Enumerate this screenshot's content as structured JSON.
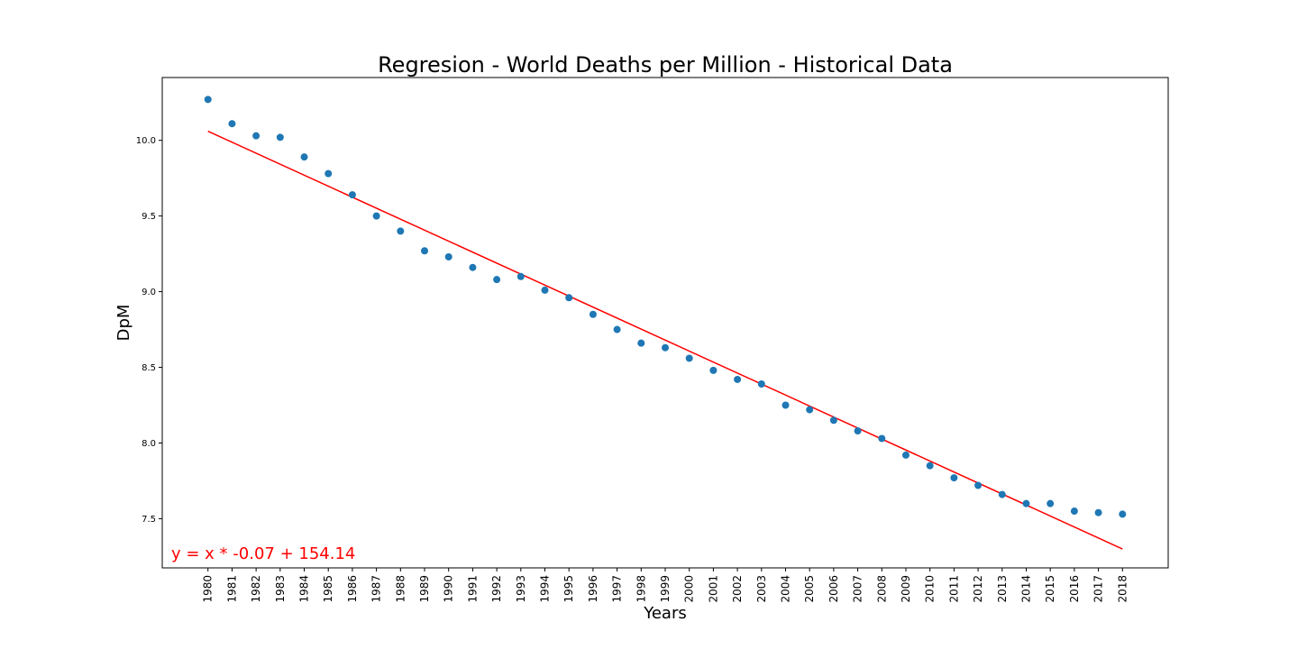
{
  "chart_data": {
    "type": "scatter",
    "title": "Regresion - World Deaths per Million - Historical Data",
    "xlabel": "Years",
    "ylabel": "DpM",
    "x": [
      1980,
      1981,
      1982,
      1983,
      1984,
      1985,
      1986,
      1987,
      1988,
      1989,
      1990,
      1991,
      1992,
      1993,
      1994,
      1995,
      1996,
      1997,
      1998,
      1999,
      2000,
      2001,
      2002,
      2003,
      2004,
      2005,
      2006,
      2007,
      2008,
      2009,
      2010,
      2011,
      2012,
      2013,
      2014,
      2015,
      2016,
      2017,
      2018
    ],
    "xticks": [
      "1980",
      "1981",
      "1982",
      "1983",
      "1984",
      "1985",
      "1986",
      "1987",
      "1988",
      "1989",
      "1990",
      "1991",
      "1992",
      "1993",
      "1994",
      "1995",
      "1996",
      "1997",
      "1998",
      "1999",
      "2000",
      "2001",
      "2002",
      "2003",
      "2004",
      "2005",
      "2006",
      "2007",
      "2008",
      "2009",
      "2010",
      "2011",
      "2012",
      "2013",
      "2014",
      "2015",
      "2016",
      "2017",
      "2018"
    ],
    "y": [
      10.27,
      10.11,
      10.03,
      10.02,
      9.89,
      9.78,
      9.64,
      9.5,
      9.4,
      9.27,
      9.23,
      9.16,
      9.08,
      9.1,
      9.01,
      8.96,
      8.85,
      8.75,
      8.66,
      8.63,
      8.56,
      8.48,
      8.42,
      8.39,
      8.25,
      8.22,
      8.15,
      8.08,
      8.03,
      7.92,
      7.85,
      7.77,
      7.72,
      7.66,
      7.6,
      7.6,
      7.55,
      7.54,
      7.53
    ],
    "yticks": [
      7.5,
      8.0,
      8.5,
      9.0,
      9.5,
      10.0
    ],
    "ytick_labels": [
      "7.5",
      "8.0",
      "8.5",
      "9.0",
      "9.5",
      "10.0"
    ],
    "xlim": [
      1978.1,
      2019.9
    ],
    "ylim": [
      7.175,
      10.415
    ],
    "regression": {
      "slope": -0.07,
      "intercept": 154.14,
      "start": [
        1980,
        10.06
      ],
      "end": [
        2018,
        7.3
      ],
      "label": "y = x * -0.07 + 154.14"
    },
    "grid": false,
    "colors": {
      "points": "#1f77b4",
      "regression": "#ff0000",
      "equation": "#ff0000"
    }
  }
}
